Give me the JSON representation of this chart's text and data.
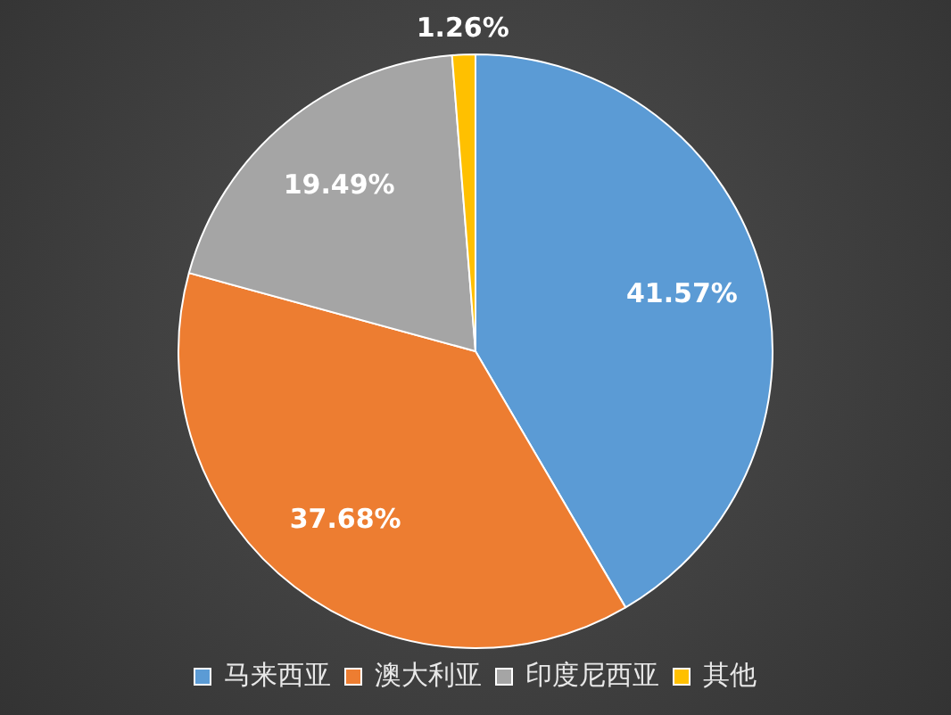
{
  "chart_data": {
    "type": "pie",
    "categories": [
      "马来西亚",
      "澳大利亚",
      "印度尼西亚",
      "其他"
    ],
    "values": [
      41.57,
      37.68,
      19.49,
      1.26
    ],
    "colors": [
      "#5b9bd5",
      "#ed7d31",
      "#a5a5a5",
      "#ffc000"
    ],
    "value_labels": [
      "41.57%",
      "37.68%",
      "19.49%",
      "1.26%"
    ],
    "legend": "bottom"
  }
}
